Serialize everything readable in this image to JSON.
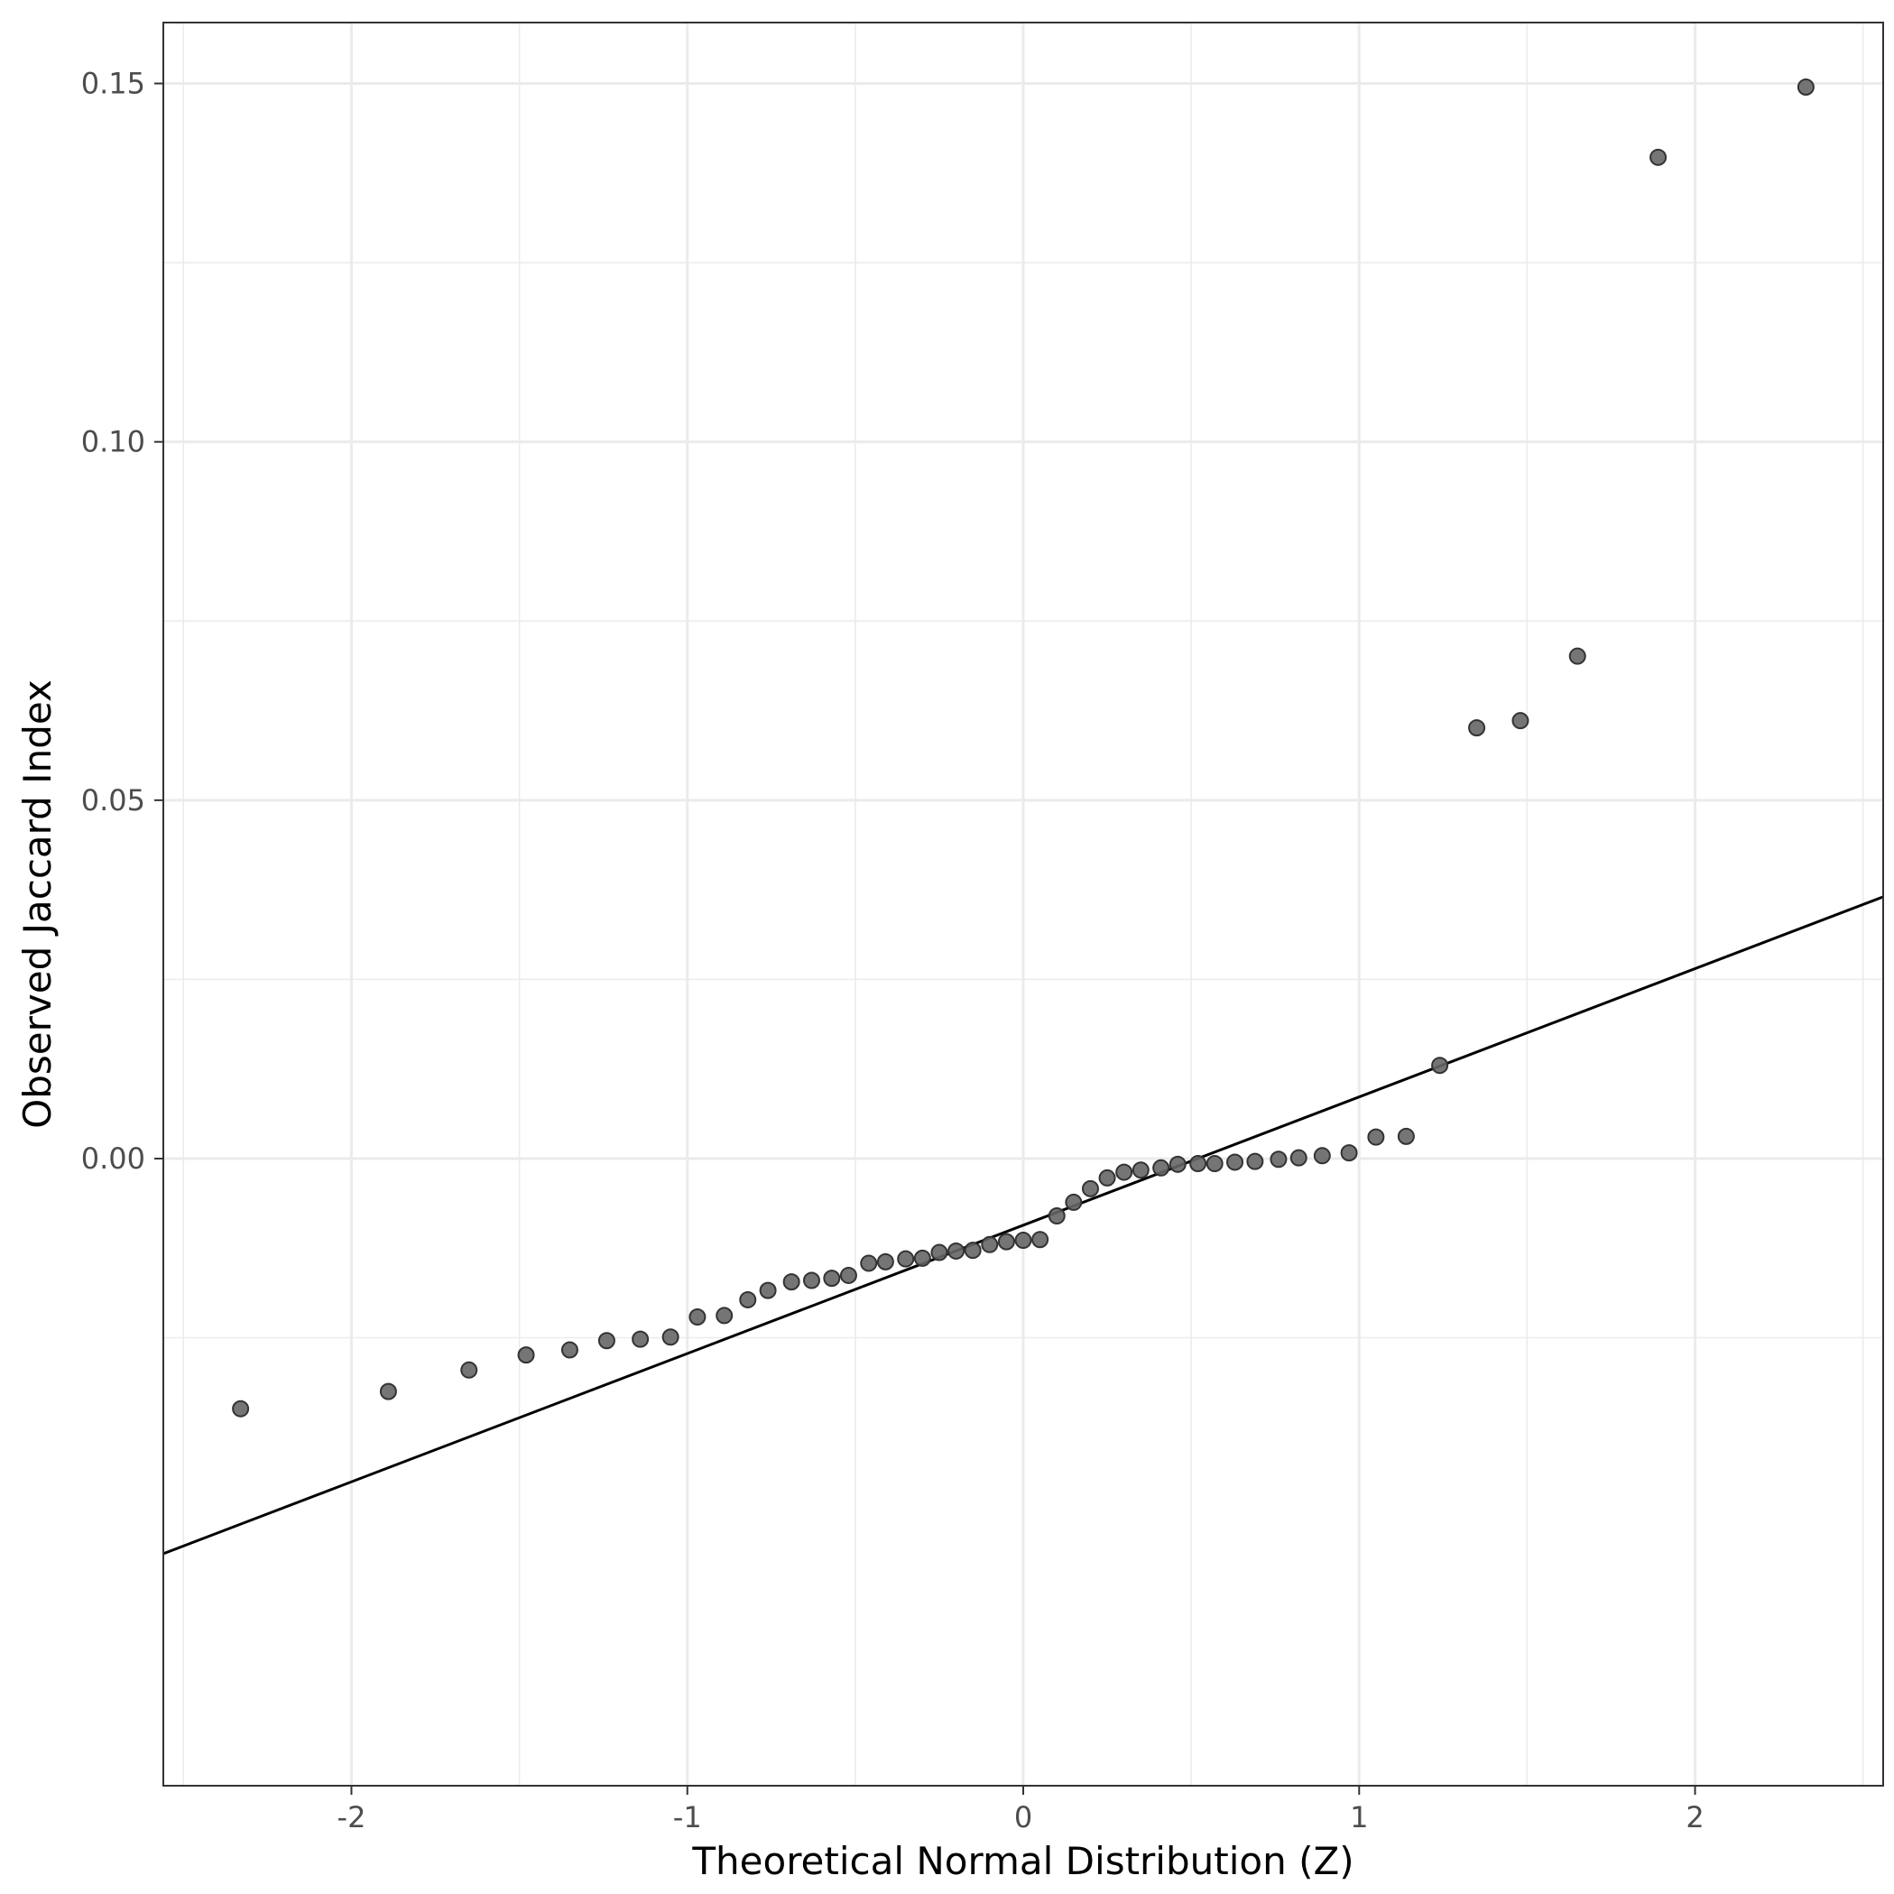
{
  "chart_data": {
    "type": "scatter",
    "title": "",
    "xlabel": "Theoretical Normal Distribution (Z)",
    "ylabel": "Observed Jaccard Index",
    "xlim": [
      -2.56,
      2.56
    ],
    "ylim": [
      -0.0875,
      0.1585
    ],
    "x_ticks": [
      -2,
      -1,
      0,
      1,
      2
    ],
    "x_tick_labels": [
      "-2",
      "-1",
      "0",
      "1",
      "2"
    ],
    "y_ticks": [
      0.0,
      0.05,
      0.1,
      0.15
    ],
    "y_tick_labels": [
      "0.00",
      "0.05",
      "0.10",
      "0.15"
    ],
    "grid": true,
    "theme": "bw",
    "point_color": "#666666",
    "line_color": "#000000",
    "reference_line": {
      "slope": 0.0179,
      "intercept": -0.0093
    },
    "points": [
      {
        "x": -2.33,
        "y": -0.0349
      },
      {
        "x": -1.89,
        "y": -0.0325
      },
      {
        "x": -1.65,
        "y": -0.0295
      },
      {
        "x": -1.48,
        "y": -0.0274
      },
      {
        "x": -1.35,
        "y": -0.0267
      },
      {
        "x": -1.24,
        "y": -0.0254
      },
      {
        "x": -1.14,
        "y": -0.0252
      },
      {
        "x": -1.05,
        "y": -0.0249
      },
      {
        "x": -0.97,
        "y": -0.0221
      },
      {
        "x": -0.89,
        "y": -0.0219
      },
      {
        "x": -0.82,
        "y": -0.0197
      },
      {
        "x": -0.76,
        "y": -0.0184
      },
      {
        "x": -0.69,
        "y": -0.0172
      },
      {
        "x": -0.63,
        "y": -0.017
      },
      {
        "x": -0.57,
        "y": -0.0167
      },
      {
        "x": -0.52,
        "y": -0.0163
      },
      {
        "x": -0.46,
        "y": -0.0146
      },
      {
        "x": -0.41,
        "y": -0.0144
      },
      {
        "x": -0.35,
        "y": -0.014
      },
      {
        "x": -0.3,
        "y": -0.0139
      },
      {
        "x": -0.25,
        "y": -0.0131
      },
      {
        "x": -0.2,
        "y": -0.0129
      },
      {
        "x": -0.15,
        "y": -0.0128
      },
      {
        "x": -0.1,
        "y": -0.012
      },
      {
        "x": -0.05,
        "y": -0.0116
      },
      {
        "x": 0.0,
        "y": -0.0114
      },
      {
        "x": 0.05,
        "y": -0.0113
      },
      {
        "x": 0.1,
        "y": -0.008
      },
      {
        "x": 0.15,
        "y": -0.0061
      },
      {
        "x": 0.2,
        "y": -0.0042
      },
      {
        "x": 0.25,
        "y": -0.0027
      },
      {
        "x": 0.3,
        "y": -0.0019
      },
      {
        "x": 0.35,
        "y": -0.0016
      },
      {
        "x": 0.41,
        "y": -0.0013
      },
      {
        "x": 0.46,
        "y": -0.0008
      },
      {
        "x": 0.52,
        "y": -0.0007
      },
      {
        "x": 0.57,
        "y": -0.0007
      },
      {
        "x": 0.63,
        "y": -0.0005
      },
      {
        "x": 0.69,
        "y": -0.0004
      },
      {
        "x": 0.76,
        "y": -0.0001
      },
      {
        "x": 0.82,
        "y": 0.0001
      },
      {
        "x": 0.89,
        "y": 0.0004
      },
      {
        "x": 0.97,
        "y": 0.0008
      },
      {
        "x": 1.05,
        "y": 0.003
      },
      {
        "x": 1.14,
        "y": 0.0031
      },
      {
        "x": 1.24,
        "y": 0.013
      },
      {
        "x": 1.35,
        "y": 0.0601
      },
      {
        "x": 1.48,
        "y": 0.0611
      },
      {
        "x": 1.65,
        "y": 0.0701
      },
      {
        "x": 1.89,
        "y": 0.1397
      },
      {
        "x": 2.33,
        "y": 0.1495
      }
    ]
  }
}
